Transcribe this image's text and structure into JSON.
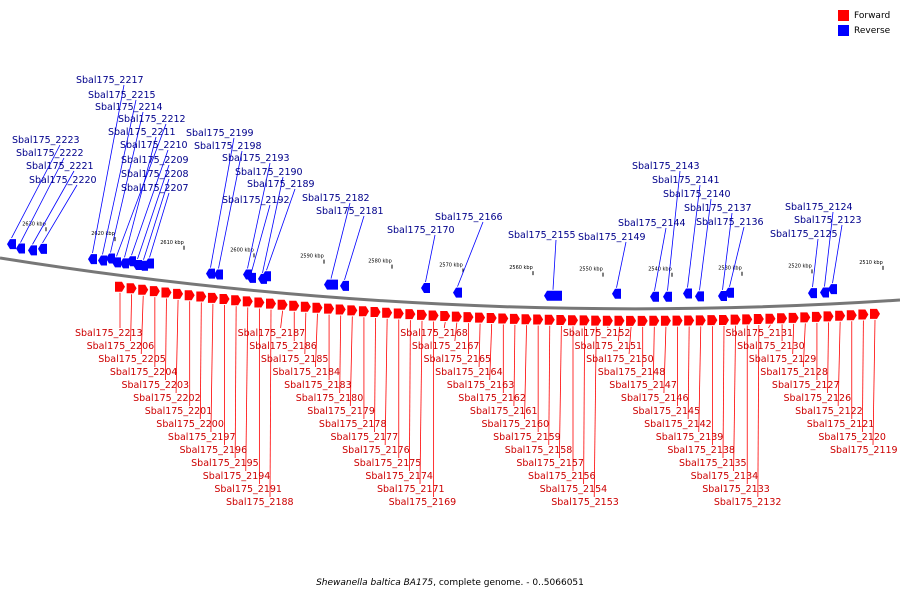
{
  "legend": {
    "items": [
      {
        "label": "Forward",
        "color": "#ff0000"
      },
      {
        "label": "Reverse",
        "color": "#0000ff"
      }
    ]
  },
  "caption": {
    "organism": "Shewanella baltica BA175",
    "rest": ", complete genome. - 0..5066051"
  },
  "scale_ticks": [
    "2630 kbp",
    "2620 kbp",
    "2610 kbp",
    "2600 kbp",
    "2590 kbp",
    "2580 kbp",
    "2570 kbp",
    "2560 kbp",
    "2550 kbp",
    "2540 kbp",
    "2530 kbp",
    "2520 kbp",
    "2510 kbp"
  ],
  "reverse_genes": [
    "Sbal175_2223",
    "Sbal175_2222",
    "Sbal175_2221",
    "Sbal175_2220",
    "Sbal175_2217",
    "Sbal175_2215",
    "Sbal175_2214",
    "Sbal175_2212",
    "Sbal175_2211",
    "Sbal175_2210",
    "Sbal175_2209",
    "Sbal175_2208",
    "Sbal175_2207",
    "Sbal175_2199",
    "Sbal175_2198",
    "Sbal175_2193",
    "Sbal175_2192",
    "Sbal175_2190",
    "Sbal175_2189",
    "Sbal175_2182",
    "Sbal175_2181",
    "Sbal175_2170",
    "Sbal175_2166",
    "Sbal175_2155",
    "Sbal175_2149",
    "Sbal175_2144",
    "Sbal175_2143",
    "Sbal175_2141",
    "Sbal175_2140",
    "Sbal175_2137",
    "Sbal175_2136",
    "Sbal175_2125",
    "Sbal175_2124",
    "Sbal175_2123"
  ],
  "forward_genes": [
    "Sbal175_2213",
    "Sbal175_2206",
    "Sbal175_2205",
    "Sbal175_2204",
    "Sbal175_2203",
    "Sbal175_2202",
    "Sbal175_2201",
    "Sbal175_2200",
    "Sbal175_2197",
    "Sbal175_2196",
    "Sbal175_2195",
    "Sbal175_2194",
    "Sbal175_2191",
    "Sbal175_2188",
    "Sbal175_2187",
    "Sbal175_2186",
    "Sbal175_2185",
    "Sbal175_2184",
    "Sbal175_2183",
    "Sbal175_2180",
    "Sbal175_2179",
    "Sbal175_2178",
    "Sbal175_2177",
    "Sbal175_2176",
    "Sbal175_2175",
    "Sbal175_2174",
    "Sbal175_2171",
    "Sbal175_2169",
    "Sbal175_2168",
    "Sbal175_2167",
    "Sbal175_2165",
    "Sbal175_2164",
    "Sbal175_2163",
    "Sbal175_2162",
    "Sbal175_2161",
    "Sbal175_2160",
    "Sbal175_2159",
    "Sbal175_2158",
    "Sbal175_2157",
    "Sbal175_2156",
    "Sbal175_2154",
    "Sbal175_2153",
    "Sbal175_2152",
    "Sbal175_2151",
    "Sbal175_2150",
    "Sbal175_2148",
    "Sbal175_2147",
    "Sbal175_2146",
    "Sbal175_2145",
    "Sbal175_2142",
    "Sbal175_2139",
    "Sbal175_2138",
    "Sbal175_2135",
    "Sbal175_2134",
    "Sbal175_2133",
    "Sbal175_2132",
    "Sbal175_2131",
    "Sbal175_2130",
    "Sbal175_2129",
    "Sbal175_2128",
    "Sbal175_2127",
    "Sbal175_2126",
    "Sbal175_2122",
    "Sbal175_2121",
    "Sbal175_2120",
    "Sbal175_2119"
  ]
}
